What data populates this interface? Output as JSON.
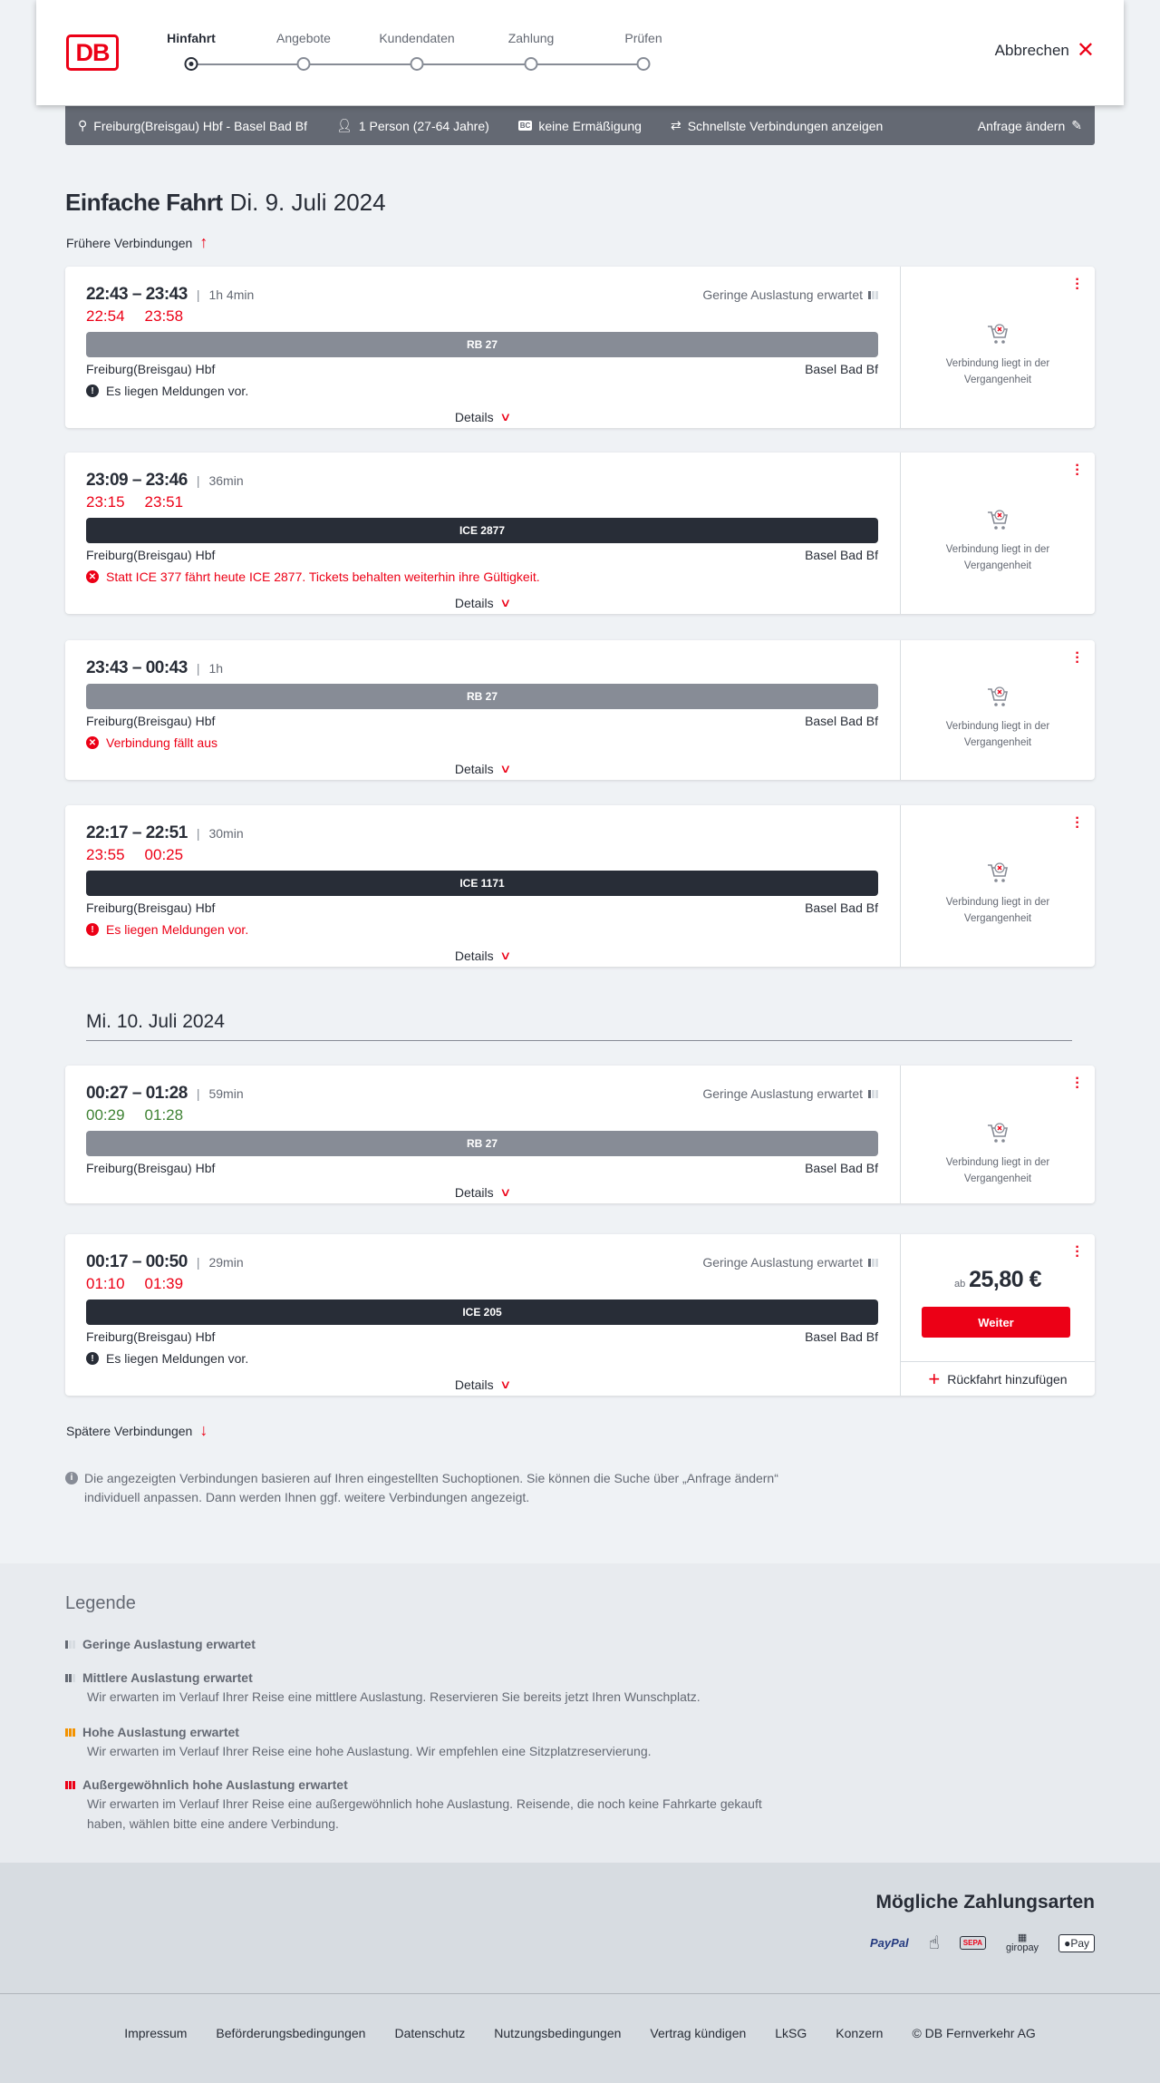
{
  "header": {
    "logo": "DB",
    "steps": [
      {
        "label": "Hinfahrt",
        "active": true
      },
      {
        "label": "Angebote"
      },
      {
        "label": "Kundendaten"
      },
      {
        "label": "Zahlung"
      },
      {
        "label": "Prüfen"
      }
    ],
    "cancel": "Abbrechen"
  },
  "infobar": {
    "route": "Freiburg(Breisgau) Hbf - Basel Bad Bf",
    "passengers": "1 Person (27-64 Jahre)",
    "discount": "keine Ermäßigung",
    "fastest": "Schnellste Verbindungen anzeigen",
    "edit": "Anfrage ändern"
  },
  "title": {
    "type": "Einfache Fahrt",
    "date": "Di. 9. Juli 2024"
  },
  "earlier": "Frühere Verbindungen",
  "later": "Spätere Verbindungen",
  "second_date": "Mi. 10. Juli 2024",
  "details": "Details",
  "past_text": "Verbindung liegt in der Vergangenheit",
  "connections": [
    {
      "times": "22:43 – 23:43",
      "duration": "1h 4min",
      "load": "Geringe Auslastung erwartet",
      "actual_dep": "22:54",
      "actual_arr": "23:58",
      "delay_color": "red",
      "train": "RB 27",
      "train_type": "rb",
      "from": "Freiburg(Breisgau) Hbf",
      "to": "Basel Bad Bf",
      "message": "Es liegen Meldungen vor.",
      "message_type": "info"
    },
    {
      "times": "23:09 – 23:46",
      "duration": "36min",
      "actual_dep": "23:15",
      "actual_arr": "23:51",
      "delay_color": "red",
      "train": "ICE 2877",
      "train_type": "ice",
      "from": "Freiburg(Breisgau) Hbf",
      "to": "Basel Bad Bf",
      "message": "Statt ICE 377 fährt heute ICE 2877. Tickets behalten weiterhin ihre Gültigkeit.",
      "message_type": "error"
    },
    {
      "times": "23:43 – 00:43",
      "duration": "1h",
      "train": "RB 27",
      "train_type": "rb",
      "from": "Freiburg(Breisgau) Hbf",
      "to": "Basel Bad Bf",
      "message": "Verbindung fällt aus",
      "message_type": "error"
    },
    {
      "times": "22:17 – 22:51",
      "duration": "30min",
      "actual_dep": "23:55",
      "actual_arr": "00:25",
      "delay_color": "red",
      "train": "ICE 1171",
      "train_type": "ice",
      "from": "Freiburg(Breisgau) Hbf",
      "to": "Basel Bad Bf",
      "message": "Es liegen Meldungen vor.",
      "message_type": "warning"
    },
    {
      "times": "00:27 – 01:28",
      "duration": "59min",
      "load": "Geringe Auslastung erwartet",
      "actual_dep": "00:29",
      "actual_arr": "01:28",
      "delay_color": "green",
      "train": "RB 27",
      "train_type": "rb",
      "from": "Freiburg(Breisgau) Hbf",
      "to": "Basel Bad Bf"
    },
    {
      "times": "00:17 – 00:50",
      "duration": "29min",
      "load": "Geringe Auslastung erwartet",
      "actual_dep": "01:10",
      "actual_arr": "01:39",
      "delay_color": "red",
      "train": "ICE 205",
      "train_type": "ice",
      "from": "Freiburg(Breisgau) Hbf",
      "to": "Basel Bad Bf",
      "message": "Es liegen Meldungen vor.",
      "message_type": "info",
      "price_prefix": "ab",
      "price": "25,80 €",
      "button": "Weiter",
      "return": "Rückfahrt hinzufügen"
    }
  ],
  "note": "Die angezeigten Verbindungen basieren auf Ihren eingestellten Suchoptionen. Sie können die Suche über „Anfrage ändern“ individuell anpassen. Dann werden Ihnen ggf. weitere Verbindungen angezeigt.",
  "legend": {
    "title": "Legende",
    "items": [
      {
        "title": "Geringe Auslastung erwartet",
        "color": "#646973"
      },
      {
        "title": "Mittlere Auslastung erwartet",
        "desc": "Wir erwarten im Verlauf Ihrer Reise eine mittlere Auslastung. Reservieren Sie bereits jetzt Ihren Wunschplatz.",
        "color": "#646973"
      },
      {
        "title": "Hohe Auslastung erwartet",
        "desc": "Wir erwarten im Verlauf Ihrer Reise eine hohe Auslastung. Wir empfehlen eine Sitzplatzreservierung.",
        "color": "#f39200"
      },
      {
        "title": "Außergewöhnlich hohe Auslastung erwartet",
        "desc": "Wir erwarten im Verlauf Ihrer Reise eine außergewöhnlich hohe Auslastung. Reisende, die noch keine Fahrkarte gekauft haben, wählen bitte eine andere Verbindung.",
        "color": "#ec0016"
      }
    ]
  },
  "payment": {
    "title": "Mögliche Zahlungsarten",
    "methods": [
      "PayPal",
      "SEPA",
      "giropay",
      "Pay"
    ]
  },
  "footer": [
    "Impressum",
    "Beförderungsbedingungen",
    "Datenschutz",
    "Nutzungsbedingungen",
    "Vertrag kündigen",
    "LkSG",
    "Konzern",
    "© DB Fernverkehr AG"
  ]
}
